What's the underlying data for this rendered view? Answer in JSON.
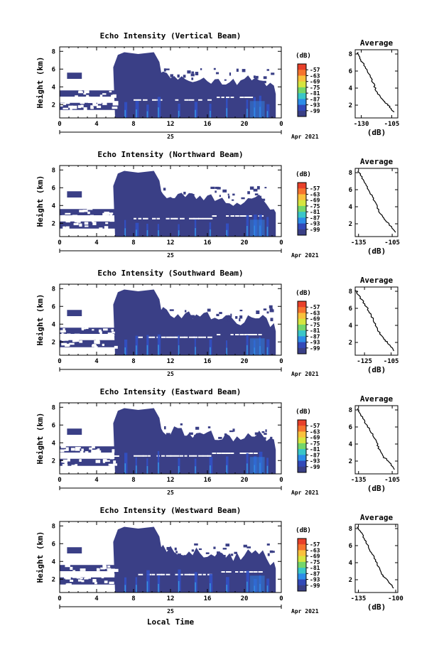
{
  "figure": {
    "xlabel": "Local Time",
    "date_day": "25",
    "date_month_year": "Apr 2021",
    "unit_label": "(dB)",
    "height_label": "Height (km)",
    "average_title": "Average"
  },
  "colorbar": {
    "ticks": [
      "-57",
      "-63",
      "-69",
      "-75",
      "-81",
      "-87",
      "-93",
      "-99"
    ],
    "colors": [
      "#e8402a",
      "#f6742e",
      "#f9c13c",
      "#d6e53f",
      "#74d66a",
      "#39c6c8",
      "#2c8ce8",
      "#3249b8",
      "#3a3f86"
    ]
  },
  "chart_data": [
    {
      "type": "heatmap",
      "title": "Echo Intensity (Vertical Beam)",
      "xlabel": "Local Time",
      "ylabel": "Height (km)",
      "x_ticks": [
        "0",
        "4",
        "8",
        "12",
        "16",
        "20",
        "0"
      ],
      "y_ticks": [
        "2",
        "4",
        "6",
        "8"
      ],
      "xlim": [
        0,
        24
      ],
      "ylim": [
        0.5,
        8.5
      ],
      "colorbar_unit": "(dB)",
      "average": {
        "title": "Average",
        "xlabel": "(dB)",
        "x_ticks": [
          "-130",
          "-105"
        ],
        "xlim": [
          -135,
          -100
        ],
        "y_ticks": [
          "2",
          "4",
          "6",
          "8"
        ],
        "ylim": [
          0.5,
          8.5
        ],
        "profile": [
          [
            8.2,
            -133
          ],
          [
            7.5,
            -131
          ],
          [
            6.5,
            -127
          ],
          [
            5.5,
            -123
          ],
          [
            4.5,
            -120
          ],
          [
            3.5,
            -117
          ],
          [
            2.5,
            -112
          ],
          [
            2.0,
            -108
          ],
          [
            1.2,
            -103
          ]
        ]
      }
    },
    {
      "type": "heatmap",
      "title": "Echo Intensity (Northward Beam)",
      "xlabel": "Local Time",
      "ylabel": "Height (km)",
      "x_ticks": [
        "0",
        "4",
        "8",
        "12",
        "16",
        "20",
        "0"
      ],
      "y_ticks": [
        "2",
        "4",
        "6",
        "8"
      ],
      "xlim": [
        0,
        24
      ],
      "ylim": [
        0.5,
        8.5
      ],
      "colorbar_unit": "(dB)",
      "average": {
        "title": "Average",
        "xlabel": "(dB)",
        "x_ticks": [
          "-135",
          "-105"
        ],
        "xlim": [
          -138,
          -100
        ],
        "y_ticks": [
          "2",
          "4",
          "6",
          "8"
        ],
        "ylim": [
          0.5,
          8.5
        ],
        "profile": [
          [
            8.2,
            -135
          ],
          [
            7.5,
            -132
          ],
          [
            6.5,
            -128
          ],
          [
            5.5,
            -124
          ],
          [
            4.5,
            -120
          ],
          [
            3.5,
            -117
          ],
          [
            2.5,
            -112
          ],
          [
            2.0,
            -108
          ],
          [
            1.0,
            -102
          ]
        ]
      }
    },
    {
      "type": "heatmap",
      "title": "Echo Intensity (Southward Beam)",
      "xlabel": "Local Time",
      "ylabel": "Height (km)",
      "x_ticks": [
        "0",
        "4",
        "8",
        "12",
        "16",
        "20",
        "0"
      ],
      "y_ticks": [
        "2",
        "4",
        "6",
        "8"
      ],
      "xlim": [
        0,
        24
      ],
      "ylim": [
        0.5,
        8.5
      ],
      "colorbar_unit": "(dB)",
      "average": {
        "title": "Average",
        "xlabel": "(dB)",
        "x_ticks": [
          "-125",
          "-105"
        ],
        "xlim": [
          -132,
          -100
        ],
        "y_ticks": [
          "2",
          "4",
          "6",
          "8"
        ],
        "ylim": [
          0.5,
          8.5
        ],
        "profile": [
          [
            8.2,
            -132
          ],
          [
            7.5,
            -129
          ],
          [
            6.5,
            -125
          ],
          [
            5.5,
            -121
          ],
          [
            4.5,
            -118
          ],
          [
            3.5,
            -115
          ],
          [
            2.5,
            -111
          ],
          [
            2.0,
            -108
          ],
          [
            1.0,
            -103
          ]
        ]
      }
    },
    {
      "type": "heatmap",
      "title": "Echo Intensity (Eastward Beam)",
      "xlabel": "Local Time",
      "ylabel": "Height (km)",
      "x_ticks": [
        "0",
        "4",
        "8",
        "12",
        "16",
        "20",
        "0"
      ],
      "y_ticks": [
        "2",
        "4",
        "6",
        "8"
      ],
      "xlim": [
        0,
        24
      ],
      "ylim": [
        0.5,
        8.5
      ],
      "colorbar_unit": "(dB)",
      "average": {
        "title": "Average",
        "xlabel": "(dB)",
        "x_ticks": [
          "-135",
          "-105"
        ],
        "xlim": [
          -138,
          -100
        ],
        "y_ticks": [
          "2",
          "4",
          "6",
          "8"
        ],
        "ylim": [
          0.5,
          8.5
        ],
        "profile": [
          [
            8.2,
            -136
          ],
          [
            7.5,
            -133
          ],
          [
            6.5,
            -129
          ],
          [
            5.5,
            -124
          ],
          [
            4.5,
            -120
          ],
          [
            3.5,
            -117
          ],
          [
            2.5,
            -113
          ],
          [
            2.0,
            -108
          ],
          [
            1.0,
            -103
          ]
        ]
      }
    },
    {
      "type": "heatmap",
      "title": "Echo Intensity (Westward Beam)",
      "xlabel": "Local Time",
      "ylabel": "Height (km)",
      "x_ticks": [
        "0",
        "4",
        "8",
        "12",
        "16",
        "20",
        "0"
      ],
      "y_ticks": [
        "2",
        "4",
        "6",
        "8"
      ],
      "xlim": [
        0,
        24
      ],
      "ylim": [
        0.5,
        8.5
      ],
      "colorbar_unit": "(dB)",
      "average": {
        "title": "Average",
        "xlabel": "(dB)",
        "x_ticks": [
          "-135",
          "-100"
        ],
        "xlim": [
          -138,
          -98
        ],
        "y_ticks": [
          "2",
          "4",
          "6",
          "8"
        ],
        "ylim": [
          0.5,
          8.5
        ],
        "profile": [
          [
            8.2,
            -136
          ],
          [
            7.5,
            -132
          ],
          [
            6.5,
            -128
          ],
          [
            5.5,
            -124
          ],
          [
            4.5,
            -120
          ],
          [
            3.5,
            -116
          ],
          [
            2.5,
            -112
          ],
          [
            2.0,
            -108
          ],
          [
            1.0,
            -102
          ]
        ]
      }
    }
  ]
}
